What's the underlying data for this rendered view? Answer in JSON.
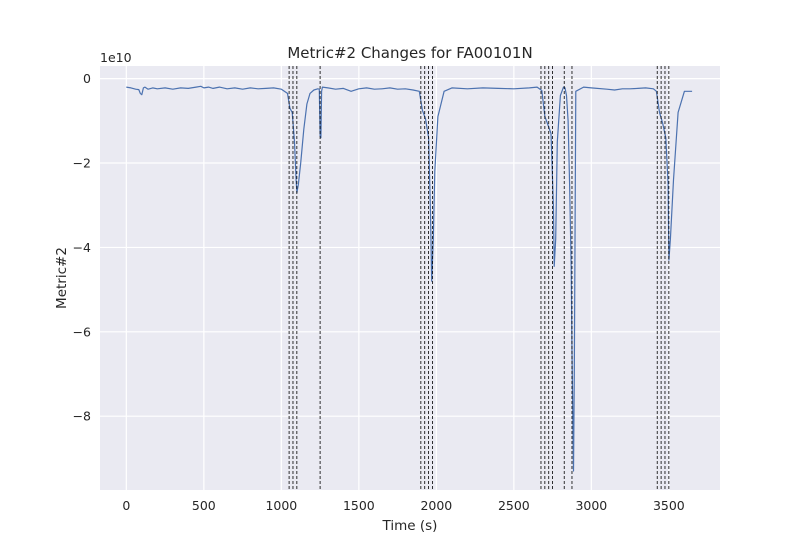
{
  "chart_data": {
    "type": "line",
    "title": "Metric#2 Changes for FA00101N",
    "xlabel": "Time (s)",
    "ylabel": "Metric#2",
    "y_scale_label": "1e10",
    "y_scale": 10000000000,
    "xlim": [
      -170,
      3830
    ],
    "ylim": [
      -9.75,
      0.3
    ],
    "xticks": [
      0,
      500,
      1000,
      1500,
      2000,
      2500,
      3000,
      3500
    ],
    "xtick_labels": [
      "0",
      "500",
      "1000",
      "1500",
      "2000",
      "2500",
      "3000",
      "3500"
    ],
    "yticks": [
      0,
      -2,
      -4,
      -6,
      -8
    ],
    "ytick_labels": [
      "0",
      "−2",
      "−4",
      "−6",
      "−8"
    ],
    "grid": true,
    "background_color": "#eaeaf2",
    "grid_color": "#ffffff",
    "line_color": "#4c72b0",
    "vline_color": "#000000",
    "vline_style": "dashed",
    "vlines": [
      1050,
      1075,
      1100,
      1250,
      1900,
      1925,
      1950,
      1975,
      2675,
      2700,
      2725,
      2750,
      2825,
      2875,
      3425,
      3450,
      3475,
      3500
    ],
    "series": [
      {
        "x": [
          0,
          30,
          60,
          80,
          90,
          100,
          110,
          120,
          140,
          170,
          200,
          250,
          300,
          350,
          400,
          450,
          480,
          500,
          530,
          560,
          600,
          650,
          700,
          750,
          800,
          850,
          900,
          950,
          1000,
          1040,
          1055,
          1070,
          1085,
          1095,
          1100,
          1110,
          1125,
          1145,
          1165,
          1185,
          1210,
          1235,
          1245,
          1250,
          1255,
          1260,
          1265,
          1300,
          1350,
          1400,
          1450,
          1500,
          1550,
          1600,
          1650,
          1700,
          1750,
          1800,
          1850,
          1890,
          1910,
          1930,
          1950,
          1962,
          1970,
          1980,
          1990,
          2010,
          2050,
          2100,
          2200,
          2300,
          2400,
          2500,
          2600,
          2650,
          2680,
          2700,
          2720,
          2740,
          2755,
          2760,
          2770,
          2780,
          2800,
          2820,
          2830,
          2840,
          2850,
          2860,
          2870,
          2875,
          2880,
          2885,
          2890,
          2900,
          2950,
          3000,
          3100,
          3150,
          3200,
          3250,
          3300,
          3350,
          3400,
          3420,
          3440,
          3460,
          3480,
          3495,
          3500,
          3510,
          3530,
          3560,
          3600,
          3650
        ],
        "y": [
          -0.2,
          -0.22,
          -0.25,
          -0.26,
          -0.35,
          -0.38,
          -0.22,
          -0.2,
          -0.25,
          -0.22,
          -0.24,
          -0.22,
          -0.25,
          -0.22,
          -0.23,
          -0.2,
          -0.18,
          -0.22,
          -0.2,
          -0.23,
          -0.2,
          -0.24,
          -0.22,
          -0.25,
          -0.22,
          -0.24,
          -0.23,
          -0.22,
          -0.25,
          -0.35,
          -0.7,
          -0.8,
          -1.5,
          -2.4,
          -2.7,
          -2.5,
          -2.0,
          -1.2,
          -0.6,
          -0.35,
          -0.27,
          -0.24,
          -0.25,
          -1.35,
          -1.4,
          -0.3,
          -0.2,
          -0.22,
          -0.25,
          -0.23,
          -0.3,
          -0.24,
          -0.22,
          -0.25,
          -0.24,
          -0.22,
          -0.25,
          -0.24,
          -0.27,
          -0.3,
          -0.75,
          -0.95,
          -1.4,
          -3.2,
          -4.8,
          -3.8,
          -2.2,
          -0.9,
          -0.3,
          -0.22,
          -0.24,
          -0.22,
          -0.23,
          -0.24,
          -0.22,
          -0.2,
          -0.28,
          -0.9,
          -1.1,
          -1.3,
          -3.0,
          -4.45,
          -3.8,
          -1.5,
          -0.4,
          -0.2,
          -0.22,
          -0.4,
          -1.0,
          -2.5,
          -4.5,
          -6.5,
          -8.0,
          -9.3,
          -7.0,
          -0.3,
          -0.2,
          -0.22,
          -0.25,
          -0.27,
          -0.24,
          -0.24,
          -0.23,
          -0.22,
          -0.24,
          -0.3,
          -0.8,
          -1.05,
          -1.4,
          -2.5,
          -4.3,
          -3.8,
          -2.4,
          -0.8,
          -0.3,
          -0.3
        ]
      }
    ]
  }
}
